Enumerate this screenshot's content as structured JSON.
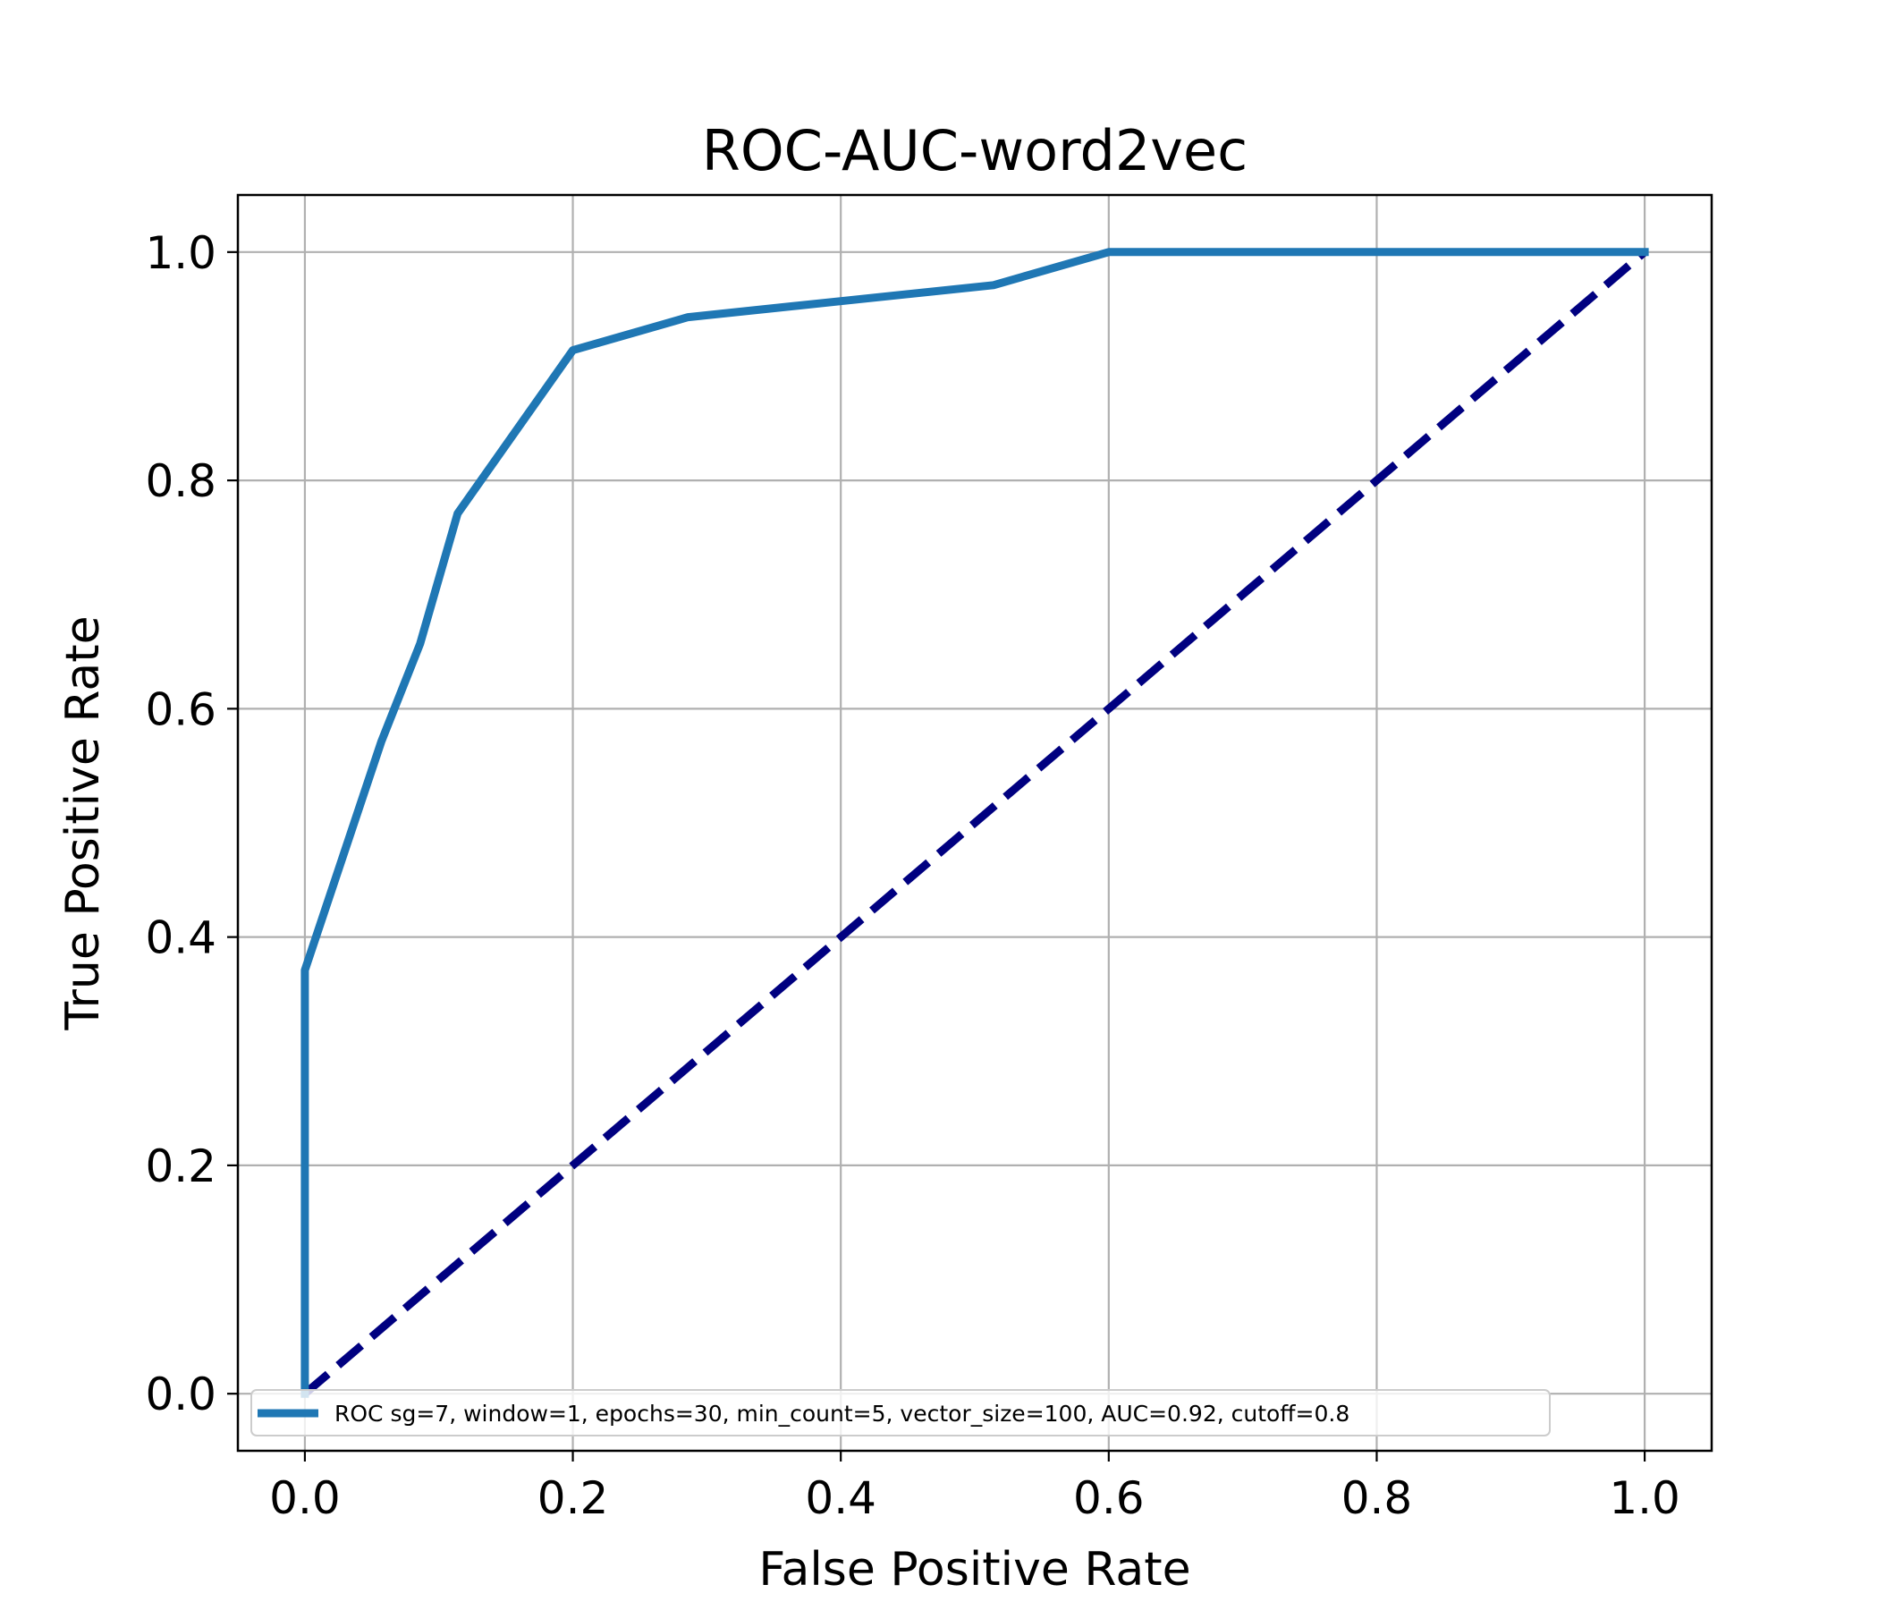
{
  "chart_data": {
    "type": "line",
    "title": "ROC-AUC-word2vec",
    "xlabel": "False Positive Rate",
    "ylabel": "True Positive Rate",
    "xlim": [
      -0.05,
      1.05
    ],
    "ylim": [
      -0.05,
      1.05
    ],
    "xticks": [
      0.0,
      0.2,
      0.4,
      0.6,
      0.8,
      1.0
    ],
    "yticks": [
      0.0,
      0.2,
      0.4,
      0.6,
      0.8,
      1.0
    ],
    "xtick_labels": [
      "0.0",
      "0.2",
      "0.4",
      "0.6",
      "0.8",
      "1.0"
    ],
    "ytick_labels": [
      "0.0",
      "0.2",
      "0.4",
      "0.6",
      "0.8",
      "1.0"
    ],
    "grid": true,
    "legend_position": "lower-left",
    "series": [
      {
        "name": "ROC sg=7, window=1, epochs=30, min_count=5, vector_size=100, AUC=0.92, cutoff=0.8",
        "color": "#1f77b4",
        "style": "solid",
        "x": [
          0.0,
          0.0,
          0.057,
          0.086,
          0.114,
          0.2,
          0.286,
          0.4,
          0.514,
          0.6,
          1.0
        ],
        "y": [
          0.0,
          0.371,
          0.571,
          0.657,
          0.771,
          0.914,
          0.943,
          0.957,
          0.971,
          1.0,
          1.0
        ]
      },
      {
        "color": "#000080",
        "style": "dashed",
        "x": [
          0.0,
          1.0
        ],
        "y": [
          0.0,
          1.0
        ]
      }
    ]
  }
}
